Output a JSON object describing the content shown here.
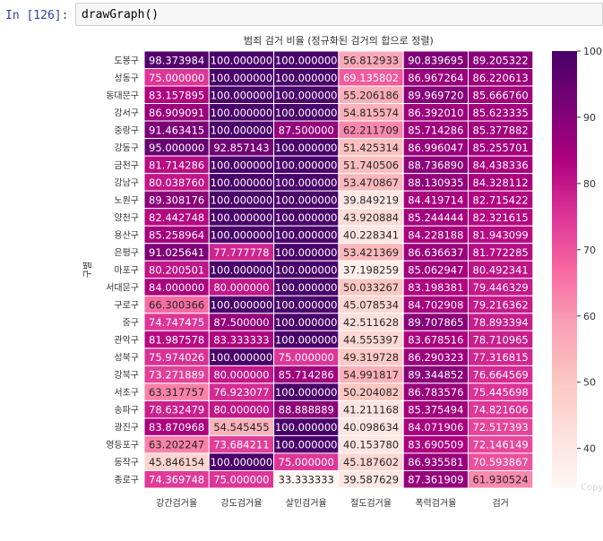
{
  "notebook": {
    "prompt": "In [126]:",
    "code": "drawGraph()"
  },
  "watermark": "Copy",
  "colors": {
    "prompt": "#303f9f",
    "code_bg": "#f7f7f7",
    "cmap": [
      "#fff7f3",
      "#fde0dd",
      "#fcc5c0",
      "#fa9fb5",
      "#f768a1",
      "#dd3497",
      "#ae017e",
      "#7a0177",
      "#49006a"
    ]
  },
  "chart_data": {
    "type": "heatmap",
    "title": "범죄 검거 비율 (정규화된 검거의 합으로 정렬)",
    "ylabel": "구별",
    "xlabel": "",
    "columns": [
      "강간검거율",
      "강도검거율",
      "살인검거율",
      "절도검거율",
      "폭력검거율",
      "검거"
    ],
    "rows": [
      "도봉구",
      "성동구",
      "동대문구",
      "강서구",
      "중랑구",
      "강동구",
      "금천구",
      "강남구",
      "노원구",
      "양천구",
      "용산구",
      "은평구",
      "마포구",
      "서대문구",
      "구로구",
      "중구",
      "관악구",
      "성북구",
      "강북구",
      "서초구",
      "송파구",
      "광진구",
      "영등포구",
      "동작구",
      "종로구"
    ],
    "values": [
      [
        98.373984,
        100.0,
        100.0,
        56.812933,
        90.839695,
        89.205322
      ],
      [
        75.0,
        100.0,
        100.0,
        69.135802,
        86.967264,
        86.220613
      ],
      [
        83.157895,
        100.0,
        100.0,
        55.206186,
        89.96972,
        85.66676
      ],
      [
        86.909091,
        100.0,
        100.0,
        54.815574,
        86.39201,
        85.623335
      ],
      [
        91.463415,
        100.0,
        87.5,
        62.211709,
        85.714286,
        85.377882
      ],
      [
        95.0,
        92.857143,
        100.0,
        51.425314,
        86.996047,
        85.255701
      ],
      [
        81.714286,
        100.0,
        100.0,
        51.740506,
        88.73689,
        84.438336
      ],
      [
        80.03876,
        100.0,
        100.0,
        53.470867,
        88.130935,
        84.328112
      ],
      [
        89.308176,
        100.0,
        100.0,
        39.849219,
        84.419714,
        82.715422
      ],
      [
        82.442748,
        100.0,
        100.0,
        43.920884,
        85.244444,
        82.321615
      ],
      [
        85.258964,
        100.0,
        100.0,
        40.228341,
        84.228188,
        81.943099
      ],
      [
        91.025641,
        77.777778,
        100.0,
        53.421369,
        86.636637,
        81.772285
      ],
      [
        80.200501,
        100.0,
        100.0,
        37.198259,
        85.062947,
        80.492341
      ],
      [
        84.0,
        80.0,
        100.0,
        50.033267,
        83.198381,
        79.446329
      ],
      [
        66.300366,
        100.0,
        100.0,
        45.078534,
        84.702908,
        79.216362
      ],
      [
        74.747475,
        87.5,
        100.0,
        42.511628,
        89.707865,
        78.893394
      ],
      [
        81.987578,
        83.333333,
        100.0,
        44.555397,
        83.678516,
        78.710965
      ],
      [
        75.974026,
        100.0,
        75.0,
        49.319728,
        86.290323,
        77.316815
      ],
      [
        73.271889,
        80.0,
        85.714286,
        54.991817,
        89.344852,
        76.664569
      ],
      [
        63.317757,
        76.923077,
        100.0,
        50.204082,
        86.783576,
        75.445698
      ],
      [
        78.632479,
        80.0,
        88.888889,
        41.211168,
        85.375494,
        74.821606
      ],
      [
        83.870968,
        54.545455,
        100.0,
        40.098634,
        84.071906,
        72.517393
      ],
      [
        63.202247,
        73.684211,
        100.0,
        40.15378,
        83.690509,
        72.146149
      ],
      [
        45.846154,
        100.0,
        75.0,
        45.187602,
        86.935581,
        70.593867
      ],
      [
        74.369748,
        75.0,
        33.333333,
        39.587629,
        87.361909,
        61.930524
      ]
    ],
    "value_labels": [
      [
        "98.373984",
        "100.000000",
        "100.000000",
        "56.812933",
        "90.839695",
        "89.205322"
      ],
      [
        "75.000000",
        "100.000000",
        "100.000000",
        "69.135802",
        "86.967264",
        "86.220613"
      ],
      [
        "83.157895",
        "100.000000",
        "100.000000",
        "55.206186",
        "89.969720",
        "85.666760"
      ],
      [
        "86.909091",
        "100.000000",
        "100.000000",
        "54.815574",
        "86.392010",
        "85.623335"
      ],
      [
        "91.463415",
        "100.000000",
        "87.500000",
        "62.211709",
        "85.714286",
        "85.377882"
      ],
      [
        "95.000000",
        "92.857143",
        "100.000000",
        "51.425314",
        "86.996047",
        "85.255701"
      ],
      [
        "81.714286",
        "100.000000",
        "100.000000",
        "51.740506",
        "88.736890",
        "84.438336"
      ],
      [
        "80.038760",
        "100.000000",
        "100.000000",
        "53.470867",
        "88.130935",
        "84.328112"
      ],
      [
        "89.308176",
        "100.000000",
        "100.000000",
        "39.849219",
        "84.419714",
        "82.715422"
      ],
      [
        "82.442748",
        "100.000000",
        "100.000000",
        "43.920884",
        "85.244444",
        "82.321615"
      ],
      [
        "85.258964",
        "100.000000",
        "100.000000",
        "40.228341",
        "84.228188",
        "81.943099"
      ],
      [
        "91.025641",
        "77.777778",
        "100.000000",
        "53.421369",
        "86.636637",
        "81.772285"
      ],
      [
        "80.200501",
        "100.000000",
        "100.000000",
        "37.198259",
        "85.062947",
        "80.492341"
      ],
      [
        "84.000000",
        "80.000000",
        "100.000000",
        "50.033267",
        "83.198381",
        "79.446329"
      ],
      [
        "66.300366",
        "100.000000",
        "100.000000",
        "45.078534",
        "84.702908",
        "79.216362"
      ],
      [
        "74.747475",
        "87.500000",
        "100.000000",
        "42.511628",
        "89.707865",
        "78.893394"
      ],
      [
        "81.987578",
        "83.333333",
        "100.000000",
        "44.555397",
        "83.678516",
        "78.710965"
      ],
      [
        "75.974026",
        "100.000000",
        "75.000000",
        "49.319728",
        "86.290323",
        "77.316815"
      ],
      [
        "73.271889",
        "80.000000",
        "85.714286",
        "54.991817",
        "89.344852",
        "76.664569"
      ],
      [
        "63.317757",
        "76.923077",
        "100.000000",
        "50.204082",
        "86.783576",
        "75.445698"
      ],
      [
        "78.632479",
        "80.000000",
        "88.888889",
        "41.211168",
        "85.375494",
        "74.821606"
      ],
      [
        "83.870968",
        "54.545455",
        "100.000000",
        "40.098634",
        "84.071906",
        "72.517393"
      ],
      [
        "63.202247",
        "73.684211",
        "100.000000",
        "40.153780",
        "83.690509",
        "72.146149"
      ],
      [
        "45.846154",
        "100.000000",
        "75.000000",
        "45.187602",
        "86.935581",
        "70.593867"
      ],
      [
        "74.369748",
        "75.000000",
        "33.333333",
        "39.587629",
        "87.361909",
        "61.930524"
      ]
    ],
    "vmin": 34,
    "vmax": 100,
    "colorbar_ticks": [
      40,
      50,
      60,
      70,
      80,
      90,
      100
    ],
    "colorbar_tick_labels": [
      "40",
      "50",
      "60",
      "70",
      "80",
      "90",
      "100"
    ],
    "colormap": "RdPu",
    "grid": true
  }
}
